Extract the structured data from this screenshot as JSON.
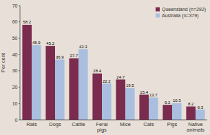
{
  "chart_data": {
    "type": "bar",
    "categories": [
      "Rats",
      "Dogs",
      "Cattle",
      "Feral\npigs",
      "Mice",
      "Cats",
      "Pigs",
      "Native\nanimals"
    ],
    "series": [
      {
        "name": "Queensland (n=292)",
        "color": "#7B2B4E",
        "values": [
          58.2,
          45.2,
          37.7,
          28.4,
          24.7,
          15.4,
          9.2,
          8.2
        ]
      },
      {
        "name": "Australia (n=379)",
        "color": "#AABFDF",
        "values": [
          45.9,
          36.9,
          43.3,
          22.2,
          19.5,
          13.7,
          10.3,
          6.3
        ]
      }
    ],
    "ylabel": "Per cent",
    "ylim": [
      0,
      70
    ],
    "yticks": [
      0,
      10,
      20,
      30,
      40,
      50,
      60,
      70
    ],
    "data_labels": true,
    "legend": "upper right",
    "grid": false
  }
}
